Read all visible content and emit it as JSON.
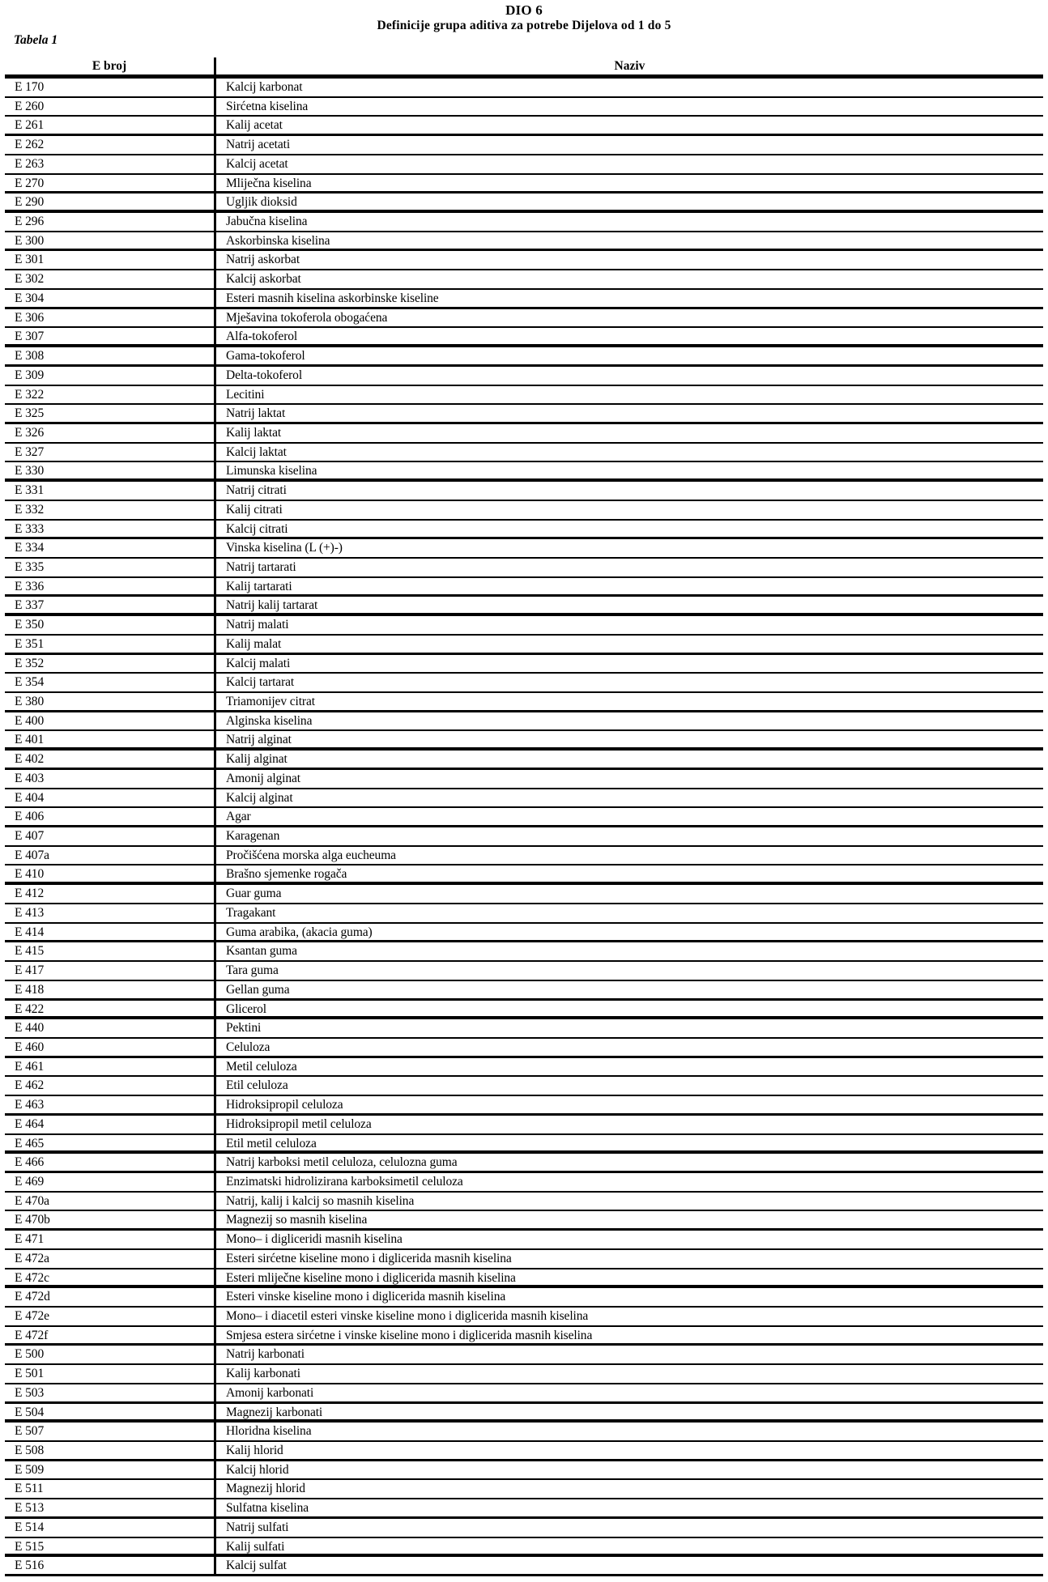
{
  "document": {
    "heading_line1": "DIO 6",
    "heading_line2": "Definicije grupa aditiva za potrebe Dijelova od 1 do 5",
    "table_label": "Tabela 1"
  },
  "table": {
    "headers": {
      "e_number": "E broj",
      "name": "Naziv"
    },
    "rows": [
      [
        "E 170",
        "Kalcij karbonat"
      ],
      [
        "E 260",
        "Sirćetna kiselina"
      ],
      [
        "E 261",
        "Kalij acetat"
      ],
      [
        "E 262",
        "Natrij acetati"
      ],
      [
        "E 263",
        "Kalcij acetat"
      ],
      [
        "E 270",
        "Mliječna kiselina"
      ],
      [
        "E 290",
        "Ugljik dioksid"
      ],
      [
        "E 296",
        "Jabučna kiselina"
      ],
      [
        "E 300",
        "Askorbinska kiselina"
      ],
      [
        "E 301",
        "Natrij askorbat"
      ],
      [
        "E 302",
        "Kalcij askorbat"
      ],
      [
        "E 304",
        "Esteri masnih kiselina askorbinske kiseline"
      ],
      [
        "E 306",
        "Mješavina tokoferola obogaćena"
      ],
      [
        "E 307",
        "Alfa-tokoferol"
      ],
      [
        "E 308",
        "Gama-tokoferol"
      ],
      [
        "E 309",
        "Delta-tokoferol"
      ],
      [
        "E 322",
        "Lecitini"
      ],
      [
        "E 325",
        "Natrij laktat"
      ],
      [
        "E 326",
        "Kalij laktat"
      ],
      [
        "E 327",
        "Kalcij laktat"
      ],
      [
        "E 330",
        "Limunska kiselina"
      ],
      [
        "E 331",
        "Natrij citrati"
      ],
      [
        "E 332",
        "Kalij citrati"
      ],
      [
        "E 333",
        "Kalcij citrati"
      ],
      [
        "E 334",
        "Vinska kiselina (L (+)-)"
      ],
      [
        "E 335",
        "Natrij tartarati"
      ],
      [
        "E 336",
        "Kalij tartarati"
      ],
      [
        "E 337",
        "Natrij kalij tartarat"
      ],
      [
        "E 350",
        "Natrij malati"
      ],
      [
        "E 351",
        "Kalij malat"
      ],
      [
        "E 352",
        "Kalcij malati"
      ],
      [
        "E 354",
        "Kalcij tartarat"
      ],
      [
        "E 380",
        "Triamonijev citrat"
      ],
      [
        "E 400",
        "Alginska kiselina"
      ],
      [
        "E 401",
        "Natrij alginat"
      ],
      [
        "E 402",
        "Kalij alginat"
      ],
      [
        "E 403",
        "Amonij alginat"
      ],
      [
        "E 404",
        "Kalcij alginat"
      ],
      [
        "E 406",
        "Agar"
      ],
      [
        "E 407",
        "Karagenan"
      ],
      [
        "E 407a",
        "Pročišćena morska alga eucheuma"
      ],
      [
        "E 410",
        "Brašno sjemenke rogača"
      ],
      [
        "E 412",
        "Guar guma"
      ],
      [
        "E 413",
        "Tragakant"
      ],
      [
        "E 414",
        "Guma arabika, (akacia guma)"
      ],
      [
        "E 415",
        "Ksantan guma"
      ],
      [
        "E 417",
        "Tara guma"
      ],
      [
        "E 418",
        "Gellan guma"
      ],
      [
        "E 422",
        "Glicerol"
      ],
      [
        "E 440",
        "Pektini"
      ],
      [
        "E 460",
        "Celuloza"
      ],
      [
        "E 461",
        "Metil celuloza"
      ],
      [
        "E 462",
        "Etil celuloza"
      ],
      [
        "E 463",
        "Hidroksipropil celuloza"
      ],
      [
        "E 464",
        "Hidroksipropil metil celuloza"
      ],
      [
        "E 465",
        "Etil metil celuloza"
      ],
      [
        "E 466",
        "Natrij karboksi metil celuloza, celulozna guma"
      ],
      [
        "E 469",
        "Enzimatski hidrolizirana karboksimetil celuloza"
      ],
      [
        "E 470a",
        "Natrij, kalij i kalcij so masnih kiselina"
      ],
      [
        "E 470b",
        "Magnezij so masnih kiselina"
      ],
      [
        "E 471",
        "Mono– i digliceridi masnih kiselina"
      ],
      [
        "E 472a",
        "Esteri sirćetne kiseline mono i diglicerida masnih kiselina"
      ],
      [
        "E 472c",
        "Esteri mliječne kiseline mono i diglicerida masnih kiselina"
      ],
      [
        "E 472d",
        "Esteri vinske kiseline mono i diglicerida masnih kiselina"
      ],
      [
        "E 472e",
        "Mono– i diacetil esteri vinske kiseline mono i diglicerida masnih kiselina"
      ],
      [
        "E 472f",
        "Smjesa estera sirćetne i vinske kiseline mono i diglicerida masnih kiselina"
      ],
      [
        "E 500",
        "Natrij karbonati"
      ],
      [
        "E 501",
        "Kalij karbonati"
      ],
      [
        "E 503",
        "Amonij karbonati"
      ],
      [
        "E 504",
        "Magnezij karbonati"
      ],
      [
        "E 507",
        "Hloridna kiselina"
      ],
      [
        "E 508",
        "Kalij hlorid"
      ],
      [
        "E 509",
        "Kalcij hlorid"
      ],
      [
        "E 511",
        "Magnezij hlorid"
      ],
      [
        "E 513",
        "Sulfatna kiselina"
      ],
      [
        "E 514",
        "Natrij sulfati"
      ],
      [
        "E 515",
        "Kalij sulfati"
      ],
      [
        "E 516",
        "Kalcij sulfat"
      ]
    ]
  }
}
